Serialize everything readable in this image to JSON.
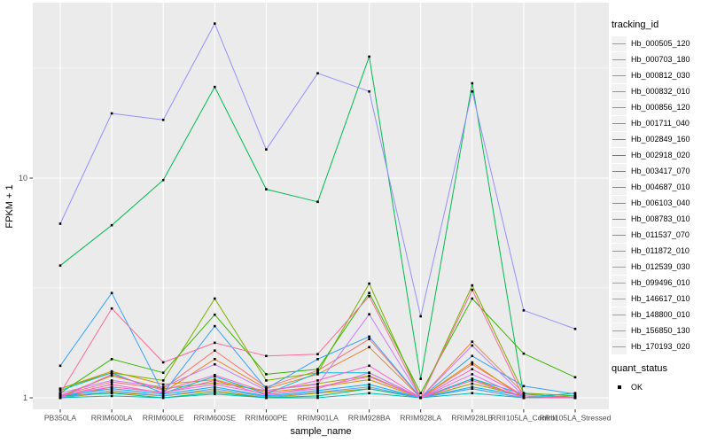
{
  "chart_data": {
    "type": "line",
    "title": "",
    "xlabel": "sample_name",
    "ylabel": "FPKM + 1",
    "y_scale": "log10",
    "ylim": [
      0.89,
      63
    ],
    "y_ticks": [
      1,
      10
    ],
    "y_tick_labels": [
      "1",
      "10"
    ],
    "y_minor_breaks": [
      3.1623,
      31.623
    ],
    "grid": "on",
    "panel_bg": "#EBEBEB",
    "grid_color": "#FFFFFF",
    "tick_label_color": "#4D4D4D",
    "point_shape": "filled-square",
    "point_color": "#000000",
    "legend_position": "right",
    "categories": [
      "PB350LA",
      "RRIM600LA",
      "RRIM600LE",
      "RRIM600SE",
      "RRIM600PE",
      "RRIM901LA",
      "RRIM928BA",
      "RRIM928LA",
      "RRIM928LB",
      "RRII105LA_Control",
      "RRII105LA_Stressed"
    ],
    "legend": {
      "color_title": "tracking_id",
      "shape_title": "quant_status",
      "shape_entries": [
        {
          "label": "OK"
        }
      ]
    },
    "series": [
      {
        "name": "Hb_000505_120",
        "color": "#F8766D",
        "values": [
          1.03,
          1.18,
          1.1,
          1.64,
          1.12,
          1.33,
          1.85,
          1.0,
          1.42,
          1.02,
          1.0
        ]
      },
      {
        "name": "Hb_000703_180",
        "color": "#EA8331",
        "values": [
          1.0,
          1.12,
          1.06,
          1.5,
          1.1,
          1.28,
          1.7,
          1.0,
          1.8,
          1.05,
          1.02
        ]
      },
      {
        "name": "Hb_000812_030",
        "color": "#D89000",
        "values": [
          1.1,
          1.32,
          1.15,
          1.21,
          1.06,
          1.12,
          1.21,
          1.0,
          1.45,
          1.0,
          1.0
        ]
      },
      {
        "name": "Hb_000832_010",
        "color": "#C09B00",
        "values": [
          1.0,
          1.06,
          1.02,
          1.08,
          1.0,
          1.05,
          1.1,
          1.0,
          1.22,
          1.0,
          1.0
        ]
      },
      {
        "name": "Hb_000856_120",
        "color": "#A3A500",
        "values": [
          1.02,
          1.26,
          1.1,
          1.17,
          1.08,
          1.16,
          1.26,
          1.0,
          1.16,
          1.02,
          1.0
        ]
      },
      {
        "name": "Hb_001711_040",
        "color": "#7CAE00",
        "values": [
          1.1,
          1.3,
          1.2,
          2.83,
          1.2,
          1.3,
          3.31,
          1.0,
          3.25,
          1.05,
          1.02
        ]
      },
      {
        "name": "Hb_002849_160",
        "color": "#39B600",
        "values": [
          1.05,
          1.5,
          1.3,
          2.39,
          1.28,
          1.35,
          3.0,
          1.05,
          2.83,
          1.59,
          1.24
        ]
      },
      {
        "name": "Hb_002918_020",
        "color": "#00BB4E",
        "values": [
          4.0,
          6.1,
          9.8,
          26.0,
          8.9,
          7.8,
          35.7,
          1.22,
          27.0,
          1.02,
          1.0
        ]
      },
      {
        "name": "Hb_003417_070",
        "color": "#00C087",
        "values": [
          1.02,
          1.05,
          1.0,
          1.06,
          1.0,
          1.02,
          1.1,
          1.0,
          1.1,
          1.0,
          1.05
        ]
      },
      {
        "name": "Hb_004687_010",
        "color": "#00C0B2",
        "values": [
          1.0,
          1.02,
          1.0,
          1.04,
          1.0,
          1.0,
          1.05,
          1.0,
          1.05,
          1.0,
          1.02
        ]
      },
      {
        "name": "Hb_006103_040",
        "color": "#00BCD8",
        "values": [
          1.08,
          1.3,
          1.05,
          1.25,
          1.04,
          1.3,
          1.3,
          1.0,
          1.22,
          1.04,
          1.0
        ]
      },
      {
        "name": "Hb_008783_010",
        "color": "#00B0F6",
        "values": [
          1.02,
          1.1,
          1.04,
          1.12,
          1.02,
          1.08,
          1.15,
          1.0,
          1.12,
          1.02,
          1.0
        ]
      },
      {
        "name": "Hb_011537_070",
        "color": "#35A2FF",
        "values": [
          1.4,
          3.0,
          1.05,
          2.12,
          1.1,
          1.5,
          1.9,
          1.0,
          1.55,
          1.13,
          1.04
        ]
      },
      {
        "name": "Hb_011872_010",
        "color": "#619CFF",
        "values": [
          1.0,
          1.08,
          1.02,
          1.1,
          1.01,
          1.06,
          1.12,
          1.0,
          1.1,
          1.0,
          1.0
        ]
      },
      {
        "name": "Hb_012539_030",
        "color": "#9590FF",
        "values": [
          6.2,
          19.7,
          18.4,
          50.5,
          13.5,
          30.0,
          24.8,
          2.35,
          24.8,
          2.5,
          2.06
        ]
      },
      {
        "name": "Hb_099496_010",
        "color": "#C77CFF",
        "values": [
          1.05,
          1.2,
          1.12,
          1.42,
          1.08,
          1.15,
          2.4,
          1.0,
          1.73,
          1.02,
          1.0
        ]
      },
      {
        "name": "Hb_146617_010",
        "color": "#E76BF3",
        "values": [
          1.03,
          1.12,
          1.06,
          1.15,
          1.04,
          1.1,
          1.3,
          1.0,
          1.28,
          1.0,
          1.0
        ]
      },
      {
        "name": "Hb_148800_010",
        "color": "#FF61C9",
        "values": [
          1.0,
          1.28,
          1.08,
          1.27,
          1.06,
          1.2,
          1.4,
          1.0,
          1.35,
          1.02,
          1.0
        ]
      },
      {
        "name": "Hb_156850_130",
        "color": "#FF62BC",
        "values": [
          1.02,
          1.15,
          1.05,
          1.2,
          1.03,
          1.12,
          1.25,
          1.0,
          1.2,
          1.0,
          1.0
        ]
      },
      {
        "name": "Hb_170193_020",
        "color": "#FF6A98",
        "values": [
          1.05,
          2.55,
          1.45,
          1.78,
          1.55,
          1.58,
          2.9,
          1.0,
          3.1,
          1.0,
          1.0
        ]
      }
    ]
  }
}
